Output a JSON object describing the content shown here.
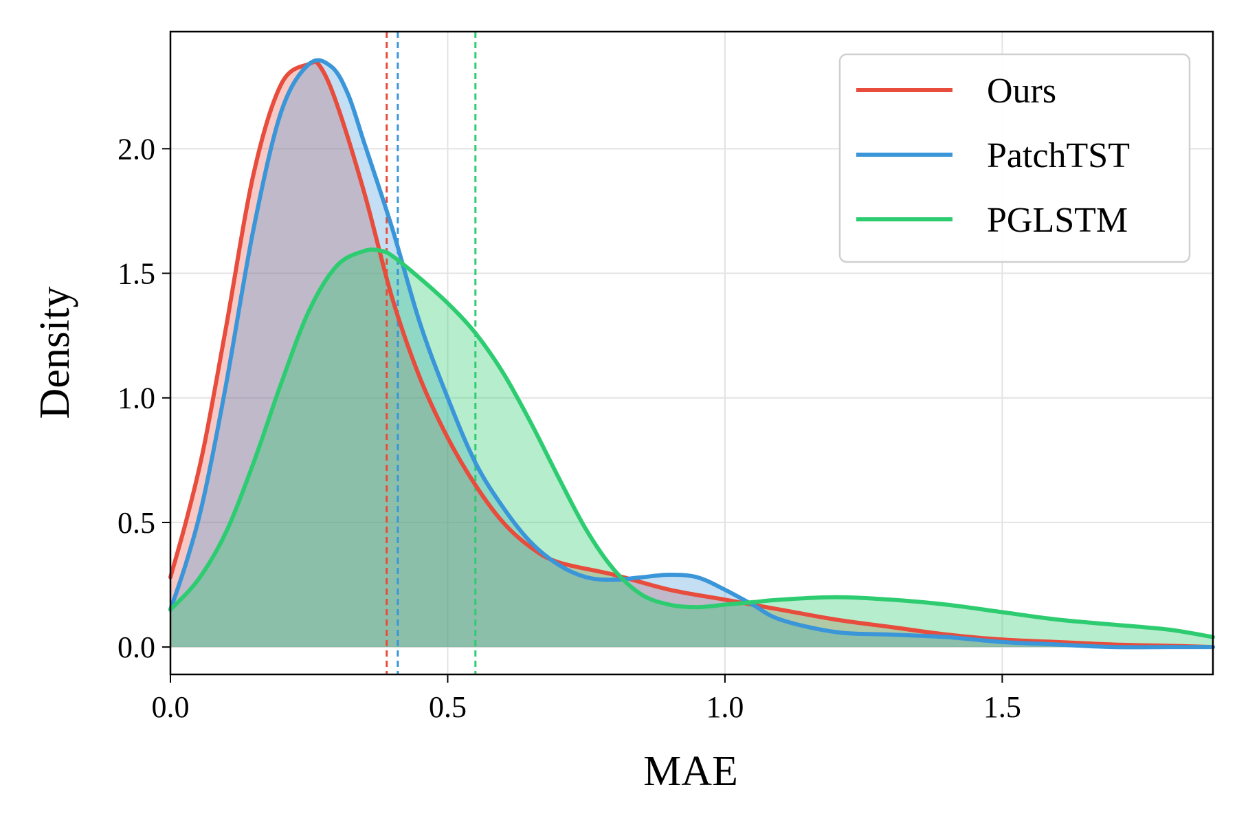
{
  "chart_data": {
    "type": "line",
    "subtype": "density",
    "title": "",
    "xlabel": "MAE",
    "ylabel": "Density",
    "xlim": [
      0.0,
      1.88
    ],
    "ylim": [
      -0.11,
      2.47
    ],
    "xticks": [
      0.0,
      0.5,
      1.0,
      1.5
    ],
    "xtick_labels": [
      "0.0",
      "0.5",
      "1.0",
      "1.5"
    ],
    "yticks": [
      0.0,
      0.5,
      1.0,
      1.5,
      2.0
    ],
    "ytick_labels": [
      "0.0",
      "0.5",
      "1.0",
      "1.5",
      "2.0"
    ],
    "grid": true,
    "legend_position": "top-right",
    "series": [
      {
        "name": "Ours",
        "color": "#e74c3c",
        "fill_alpha": 0.3,
        "mean": 0.39,
        "x": [
          0.0,
          0.03,
          0.06,
          0.1,
          0.15,
          0.2,
          0.25,
          0.27,
          0.3,
          0.35,
          0.4,
          0.45,
          0.5,
          0.55,
          0.6,
          0.65,
          0.7,
          0.8,
          0.9,
          1.0,
          1.1,
          1.2,
          1.3,
          1.4,
          1.5,
          1.6,
          1.7,
          1.8,
          1.88
        ],
        "y": [
          0.28,
          0.52,
          0.8,
          1.28,
          1.9,
          2.26,
          2.34,
          2.33,
          2.18,
          1.82,
          1.4,
          1.08,
          0.84,
          0.65,
          0.5,
          0.4,
          0.34,
          0.29,
          0.23,
          0.19,
          0.15,
          0.11,
          0.08,
          0.05,
          0.03,
          0.02,
          0.01,
          0.005,
          0.0
        ]
      },
      {
        "name": "PatchTST",
        "color": "#3a96d8",
        "fill_alpha": 0.3,
        "mean": 0.41,
        "x": [
          0.0,
          0.03,
          0.06,
          0.1,
          0.15,
          0.2,
          0.25,
          0.29,
          0.32,
          0.35,
          0.4,
          0.45,
          0.5,
          0.55,
          0.6,
          0.65,
          0.7,
          0.75,
          0.8,
          0.85,
          0.9,
          0.95,
          1.0,
          1.05,
          1.1,
          1.2,
          1.3,
          1.4,
          1.5,
          1.6,
          1.7,
          1.8,
          1.88
        ],
        "y": [
          0.15,
          0.35,
          0.6,
          1.05,
          1.68,
          2.15,
          2.34,
          2.33,
          2.22,
          2.02,
          1.68,
          1.3,
          1.0,
          0.74,
          0.56,
          0.42,
          0.33,
          0.28,
          0.27,
          0.28,
          0.29,
          0.28,
          0.23,
          0.17,
          0.11,
          0.06,
          0.05,
          0.04,
          0.02,
          0.01,
          0.0,
          0.0,
          0.0
        ]
      },
      {
        "name": "PGLSTM",
        "color": "#2ecc71",
        "fill_alpha": 0.35,
        "mean": 0.55,
        "x": [
          0.0,
          0.05,
          0.1,
          0.15,
          0.2,
          0.25,
          0.3,
          0.35,
          0.38,
          0.4,
          0.45,
          0.5,
          0.55,
          0.6,
          0.65,
          0.7,
          0.75,
          0.8,
          0.85,
          0.9,
          0.95,
          1.0,
          1.05,
          1.1,
          1.2,
          1.3,
          1.4,
          1.5,
          1.6,
          1.7,
          1.8,
          1.88
        ],
        "y": [
          0.15,
          0.27,
          0.46,
          0.74,
          1.06,
          1.35,
          1.53,
          1.59,
          1.59,
          1.57,
          1.48,
          1.38,
          1.26,
          1.1,
          0.9,
          0.68,
          0.47,
          0.31,
          0.21,
          0.17,
          0.16,
          0.17,
          0.18,
          0.19,
          0.2,
          0.19,
          0.17,
          0.14,
          0.11,
          0.09,
          0.07,
          0.04
        ]
      }
    ]
  }
}
